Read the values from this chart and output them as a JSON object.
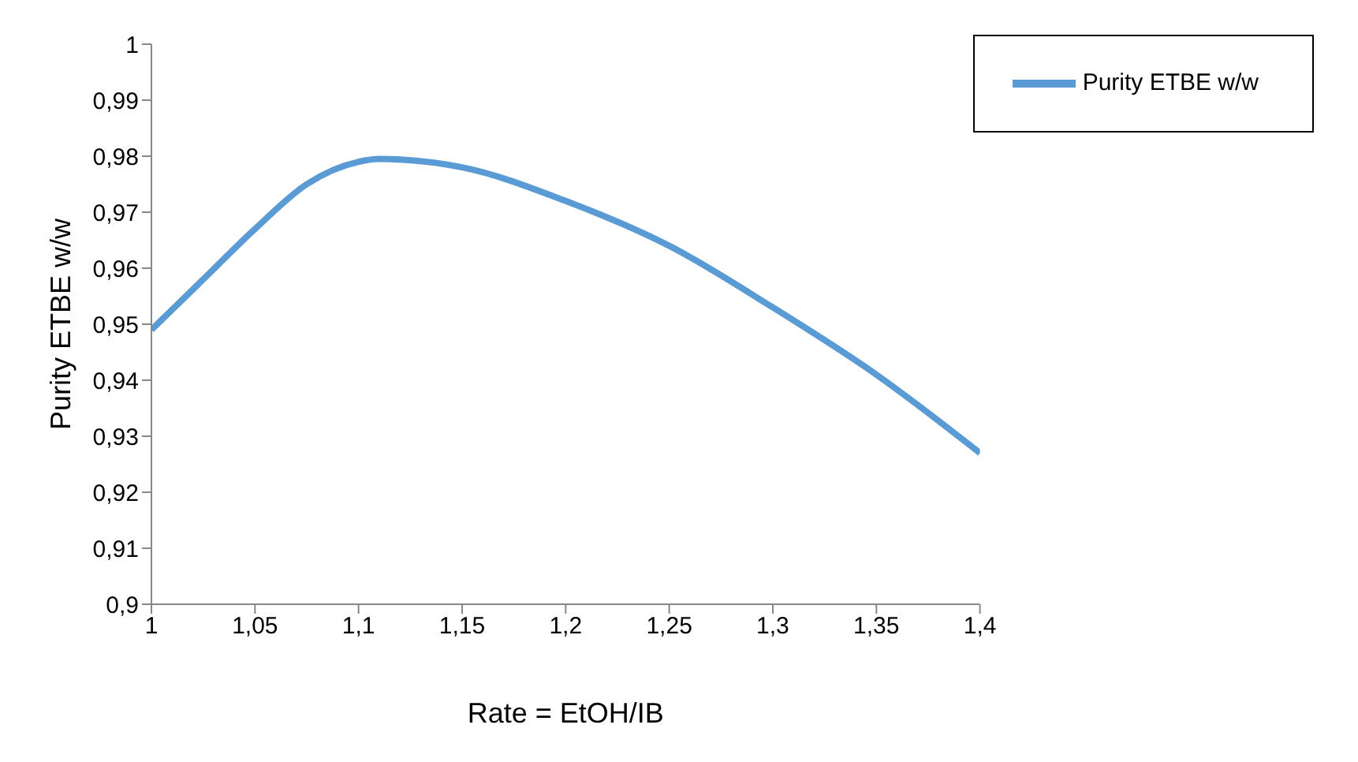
{
  "chart_data": {
    "type": "line",
    "xlabel": "Rate = EtOH/IB",
    "ylabel": "Purity ETBE w/w",
    "x": [
      1,
      1.025,
      1.05,
      1.075,
      1.1,
      1.11,
      1.15,
      1.2,
      1.25,
      1.3,
      1.35,
      1.4
    ],
    "series": [
      {
        "name": "Purity ETBE  w/w",
        "color": "#5b9bd5",
        "values": [
          0.949,
          0.958,
          0.967,
          0.975,
          0.979,
          0.9795,
          0.978,
          0.972,
          0.964,
          0.953,
          0.941,
          0.927
        ]
      }
    ],
    "xlim": [
      1,
      1.4
    ],
    "xticks": [
      1,
      {
        "value": 1.05,
        "label": "1,05"
      },
      {
        "value": 1.1,
        "label": "1,1"
      },
      {
        "value": 1.15,
        "label": "1,15"
      },
      {
        "value": 1.2,
        "label": "1,2"
      },
      {
        "value": 1.25,
        "label": "1,25"
      },
      {
        "value": 1.3,
        "label": "1,3"
      },
      {
        "value": 1.35,
        "label": "1,35"
      },
      {
        "value": 1.4,
        "label": "1,4"
      }
    ],
    "ylim": [
      0.9,
      1
    ],
    "yticks": [
      {
        "value": 0.9,
        "label": "0,9"
      },
      {
        "value": 0.91,
        "label": "0,91"
      },
      {
        "value": 0.92,
        "label": "0,92"
      },
      {
        "value": 0.93,
        "label": "0,93"
      },
      {
        "value": 0.94,
        "label": "0,94"
      },
      {
        "value": 0.95,
        "label": "0,95"
      },
      {
        "value": 0.96,
        "label": "0,96"
      },
      {
        "value": 0.97,
        "label": "0,97"
      },
      {
        "value": 0.98,
        "label": "0,98"
      },
      {
        "value": 0.99,
        "label": "0,99"
      },
      1
    ],
    "grid": false,
    "legend": "top right",
    "marker": "none",
    "line_style": "solid"
  }
}
